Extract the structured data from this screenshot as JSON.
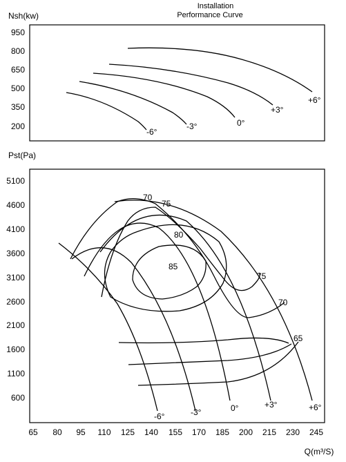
{
  "chart_data": [
    {
      "type": "line",
      "title_lines": [
        "Installation",
        "Performance Curve"
      ],
      "ylabel": "Nsh(kw)",
      "yticks": [
        950,
        800,
        650,
        500,
        350,
        200
      ],
      "grid": false,
      "series": [
        {
          "name": "-6°",
          "x": [
            80,
            100,
            120,
            140
          ],
          "y": [
            470,
            390,
            300,
            190
          ]
        },
        {
          "name": "-3°",
          "x": [
            95,
            120,
            145,
            167
          ],
          "y": [
            560,
            500,
            390,
            220
          ]
        },
        {
          "name": "0°",
          "x": [
            103,
            130,
            160,
            190
          ],
          "y": [
            640,
            590,
            480,
            260
          ]
        },
        {
          "name": "+3°",
          "x": [
            113,
            150,
            185,
            212
          ],
          "y": [
            700,
            660,
            540,
            360
          ]
        },
        {
          "name": "+6°",
          "x": [
            130,
            170,
            210,
            243
          ],
          "y": [
            830,
            800,
            700,
            480
          ]
        }
      ]
    },
    {
      "type": "line",
      "xlabel": "Q(m³/S)",
      "ylabel": "Pst(Pa)",
      "xticks": [
        65,
        80,
        95,
        110,
        125,
        140,
        155,
        170,
        185,
        200,
        215,
        230,
        245
      ],
      "yticks": [
        5100,
        4600,
        4100,
        3600,
        3100,
        2600,
        2100,
        1600,
        1100,
        600
      ],
      "grid": false,
      "series": [
        {
          "name": "-6°",
          "x": [
            85,
            105,
            125,
            145
          ],
          "y": [
            3800,
            3300,
            2000,
            150
          ]
        },
        {
          "name": "-3°",
          "x": [
            89,
            115,
            140,
            162
          ],
          "y": [
            3450,
            3450,
            2400,
            150
          ]
        },
        {
          "name": "0°",
          "x": [
            95,
            125,
            155,
            181
          ],
          "y": [
            3100,
            4000,
            2800,
            150
          ]
        },
        {
          "name": "+3°",
          "x": [
            103,
            140,
            175,
            206
          ],
          "y": [
            3600,
            4500,
            3200,
            150
          ]
        },
        {
          "name": "+6°",
          "x": [
            120,
            160,
            200,
            238
          ],
          "y": [
            4400,
            4700,
            3500,
            150
          ]
        }
      ],
      "efficiency_labels": [
        "70",
        "75",
        "80",
        "85",
        "75",
        "70",
        "65"
      ]
    }
  ]
}
